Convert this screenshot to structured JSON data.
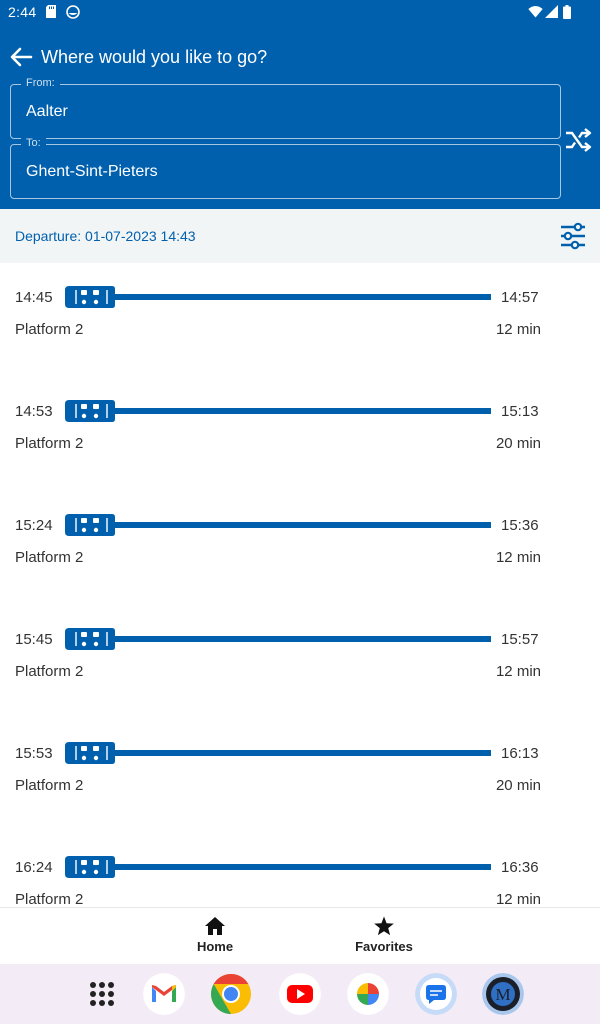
{
  "status_bar": {
    "time": "2:44"
  },
  "header": {
    "title": "Where would you like to go?",
    "from": {
      "label": "From:",
      "value": "Aalter"
    },
    "to": {
      "label": "To:",
      "value": "Ghent-Sint-Pieters"
    }
  },
  "departure": {
    "text": "Departure: 01-07-2023 14:43"
  },
  "trips": [
    {
      "dep": "14:45",
      "arr": "14:57",
      "platform": "Platform 2",
      "duration": "12 min"
    },
    {
      "dep": "14:53",
      "arr": "15:13",
      "platform": "Platform 2",
      "duration": "20 min"
    },
    {
      "dep": "15:24",
      "arr": "15:36",
      "platform": "Platform 2",
      "duration": "12 min"
    },
    {
      "dep": "15:45",
      "arr": "15:57",
      "platform": "Platform 2",
      "duration": "12 min"
    },
    {
      "dep": "15:53",
      "arr": "16:13",
      "platform": "Platform 2",
      "duration": "20 min"
    },
    {
      "dep": "16:24",
      "arr": "16:36",
      "platform": "Platform 2",
      "duration": "12 min"
    }
  ],
  "bottom_nav": {
    "home": "Home",
    "favorites": "Favorites"
  },
  "dock": [
    "app-drawer-icon",
    "gmail-icon",
    "chrome-icon",
    "youtube-icon",
    "photos-icon",
    "messages-icon",
    "app-m-icon"
  ],
  "colors": {
    "primary": "#0060ad",
    "dep_bar": "#f2f5f6",
    "dock_bg": "#f3ecf7"
  }
}
